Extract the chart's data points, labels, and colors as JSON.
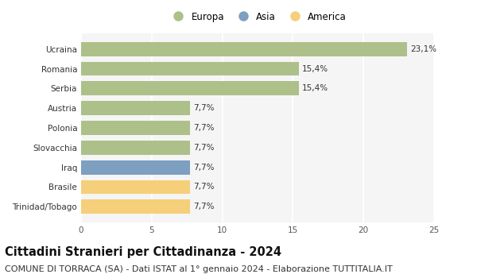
{
  "categories": [
    "Trinidad/Tobago",
    "Brasile",
    "Iraq",
    "Slovacchia",
    "Polonia",
    "Austria",
    "Serbia",
    "Romania",
    "Ucraina"
  ],
  "values": [
    7.7,
    7.7,
    7.7,
    7.7,
    7.7,
    7.7,
    15.4,
    15.4,
    23.1
  ],
  "labels": [
    "7,7%",
    "7,7%",
    "7,7%",
    "7,7%",
    "7,7%",
    "7,7%",
    "15,4%",
    "15,4%",
    "23,1%"
  ],
  "colors": [
    "#f5cf7a",
    "#f5cf7a",
    "#7d9fc0",
    "#adc08a",
    "#adc08a",
    "#adc08a",
    "#adc08a",
    "#adc08a",
    "#adc08a"
  ],
  "legend": [
    {
      "label": "Europa",
      "color": "#adc08a"
    },
    {
      "label": "Asia",
      "color": "#7d9fc0"
    },
    {
      "label": "America",
      "color": "#f5cf7a"
    }
  ],
  "xlim": [
    0,
    25
  ],
  "xticks": [
    0,
    5,
    10,
    15,
    20,
    25
  ],
  "title": "Cittadini Stranieri per Cittadinanza - 2024",
  "subtitle": "COMUNE DI TORRACA (SA) - Dati ISTAT al 1° gennaio 2024 - Elaborazione TUTTITALIA.IT",
  "bg_color": "#ffffff",
  "plot_bg_color": "#f5f5f5",
  "bar_height": 0.72,
  "grid_color": "#ffffff",
  "title_fontsize": 10.5,
  "subtitle_fontsize": 8,
  "label_fontsize": 7.5,
  "tick_fontsize": 7.5,
  "legend_fontsize": 8.5
}
